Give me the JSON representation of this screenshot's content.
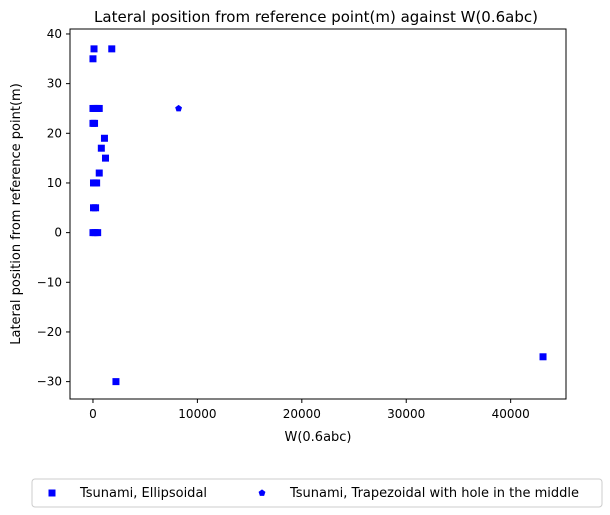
{
  "chart_data": {
    "type": "scatter",
    "title": "Lateral position from reference point(m) against W(0.6abc)",
    "xlabel": "W(0.6abc)",
    "ylabel": "Lateral position from reference point(m)",
    "xlim": [
      -2200,
      45300
    ],
    "ylim": [
      -33.5,
      41
    ],
    "xticks": [
      0,
      10000,
      20000,
      30000,
      40000
    ],
    "xtick_labels": [
      "0",
      "10000",
      "20000",
      "30000",
      "40000"
    ],
    "yticks": [
      -30,
      -20,
      -10,
      0,
      10,
      20,
      30,
      40
    ],
    "ytick_labels": [
      "−30",
      "−20",
      "−10",
      "0",
      "10",
      "20",
      "30",
      "40"
    ],
    "grid": false,
    "legend_placement": "below",
    "series": [
      {
        "name": "Tsunami, Ellipsoidal",
        "marker": "square",
        "color": "#0000ff",
        "points": [
          [
            100,
            37
          ],
          [
            1800,
            37
          ],
          [
            0,
            35
          ],
          [
            0,
            25
          ],
          [
            200,
            25
          ],
          [
            400,
            25
          ],
          [
            600,
            25
          ],
          [
            0,
            22
          ],
          [
            150,
            22
          ],
          [
            1100,
            19
          ],
          [
            800,
            17
          ],
          [
            1200,
            15
          ],
          [
            600,
            12
          ],
          [
            50,
            10
          ],
          [
            200,
            10
          ],
          [
            350,
            10
          ],
          [
            50,
            5
          ],
          [
            250,
            5
          ],
          [
            0,
            0
          ],
          [
            200,
            0
          ],
          [
            450,
            0
          ],
          [
            2200,
            -30
          ],
          [
            43100,
            -25
          ]
        ]
      },
      {
        "name": "Tsunami, Trapezoidal with hole in the middle",
        "marker": "pentagon",
        "color": "#0000ff",
        "points": [
          [
            8200,
            25
          ]
        ]
      }
    ]
  }
}
